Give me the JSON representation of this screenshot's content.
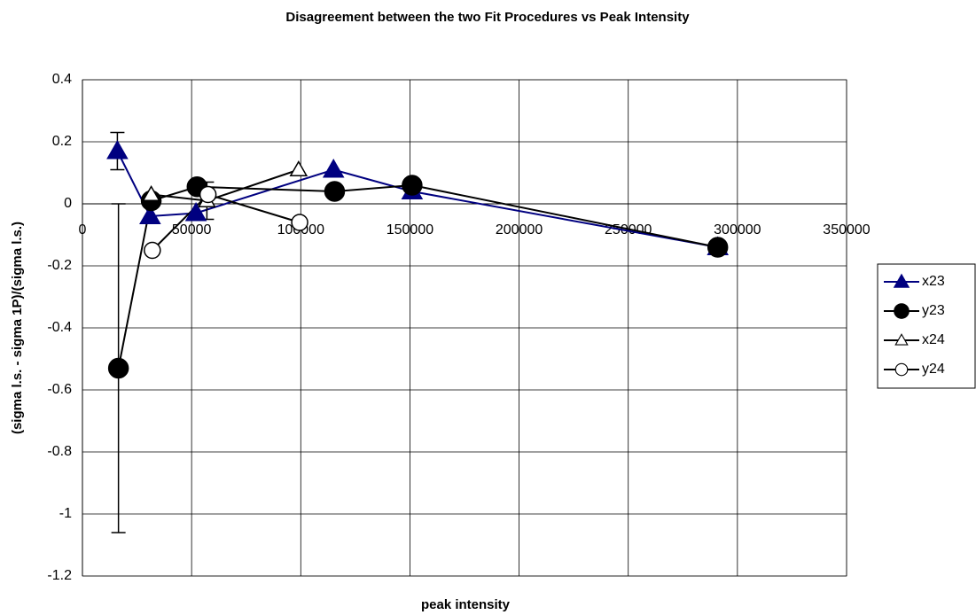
{
  "chart_data": {
    "type": "line",
    "title": "Disagreement between the two Fit Procedures vs Peak Intensity",
    "x_label": "peak intensity",
    "y_label": "(sigma l.s. - sigma 1P)/(sigma l.s.)",
    "xlim": [
      0,
      350000
    ],
    "xticks": [
      0,
      50000,
      100000,
      150000,
      200000,
      250000,
      300000,
      350000
    ],
    "ylim": [
      -1.2,
      0.4
    ],
    "yticks": [
      -1.2,
      -1,
      -0.8,
      -0.6,
      -0.4,
      -0.2,
      0,
      0.2,
      0.4
    ],
    "grid": true,
    "legend": "right",
    "series": [
      {
        "name": "x23",
        "color": "#000080",
        "marker": "triangle",
        "filled": true,
        "x": [
          16000,
          31000,
          52000,
          115000,
          151000,
          291000
        ],
        "values": [
          0.17,
          -0.04,
          -0.03,
          0.11,
          0.04,
          -0.14
        ],
        "errors": [
          0.06,
          null,
          null,
          null,
          null,
          null
        ]
      },
      {
        "name": "y23",
        "color": "#000000",
        "marker": "circle",
        "filled": true,
        "x": [
          16500,
          31500,
          52500,
          115500,
          151000,
          291000
        ],
        "values": [
          -0.53,
          0.01,
          0.055,
          0.04,
          0.06,
          -0.14
        ],
        "errors": [
          0.53,
          null,
          null,
          null,
          null,
          null
        ]
      },
      {
        "name": "x24",
        "color": "#000000",
        "marker": "triangle",
        "filled": false,
        "x": [
          31500,
          57000,
          99000
        ],
        "values": [
          0.03,
          0.01,
          0.11
        ],
        "errors": [
          null,
          0.06,
          null
        ]
      },
      {
        "name": "y24",
        "color": "#000000",
        "marker": "circle",
        "filled": false,
        "x": [
          32000,
          57500,
          99500
        ],
        "values": [
          -0.15,
          0.03,
          -0.06
        ],
        "errors": [
          null,
          null,
          null
        ]
      }
    ]
  }
}
